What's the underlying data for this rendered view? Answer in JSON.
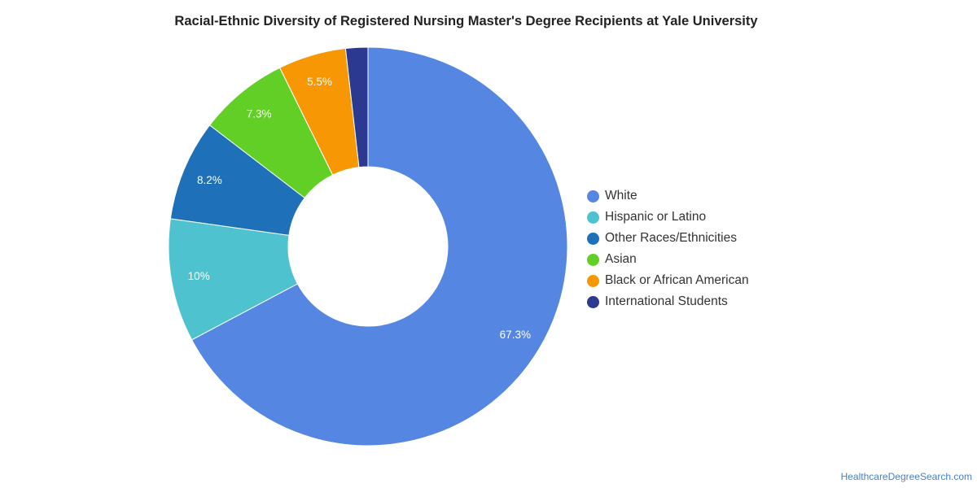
{
  "chart_data": {
    "type": "pie",
    "title": "Racial-Ethnic Diversity of Registered Nursing Master's Degree Recipients at Yale University",
    "donut": true,
    "legend_position": "right",
    "slices": [
      {
        "name": "White",
        "value": 67.3,
        "label": "67.3%",
        "color": "#5486e2"
      },
      {
        "name": "Hispanic or Latino",
        "value": 10,
        "label": "10%",
        "color": "#4fc2cf"
      },
      {
        "name": "Other Races/Ethnicities",
        "value": 8.2,
        "label": "8.2%",
        "color": "#1e70b8"
      },
      {
        "name": "Asian",
        "value": 7.3,
        "label": "7.3%",
        "color": "#62cf27"
      },
      {
        "name": "Black or African American",
        "value": 5.5,
        "label": "5.5%",
        "color": "#f79704"
      },
      {
        "name": "International Students",
        "value": 1.8,
        "label": "",
        "color": "#2b3990"
      }
    ]
  },
  "watermark": "HealthcareDegreeSearch.com"
}
